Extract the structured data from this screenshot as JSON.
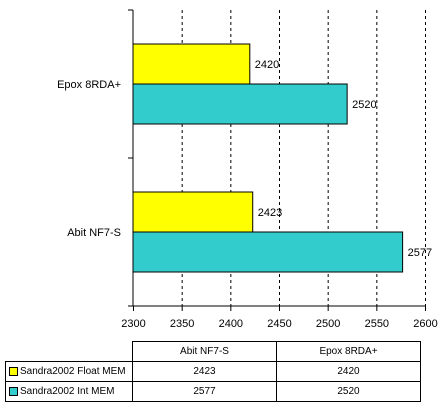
{
  "chart_data": {
    "type": "bar",
    "orientation": "horizontal",
    "categories": [
      "Epox 8RDA+",
      "Abit NF7-S"
    ],
    "series": [
      {
        "name": "Sandra2002 Float MEM",
        "color": "#ffff00",
        "values": [
          2420,
          2423
        ]
      },
      {
        "name": "Sandra2002 Int MEM",
        "color": "#33cccc",
        "values": [
          2520,
          2577
        ]
      }
    ],
    "xlim": [
      2300,
      2600
    ],
    "xticks": [
      2300,
      2350,
      2400,
      2450,
      2500,
      2550,
      2600
    ],
    "grid": "vertical dashed",
    "data_labels": true,
    "table": {
      "columns": [
        "Abit NF7-S",
        "Epox 8RDA+"
      ],
      "rows": [
        {
          "label": "Sandra2002 Float MEM",
          "color": "#ffff00",
          "values": [
            "2423",
            "2420"
          ]
        },
        {
          "label": "Sandra2002 Int MEM",
          "color": "#33cccc",
          "values": [
            "2577",
            "2520"
          ]
        }
      ]
    }
  }
}
